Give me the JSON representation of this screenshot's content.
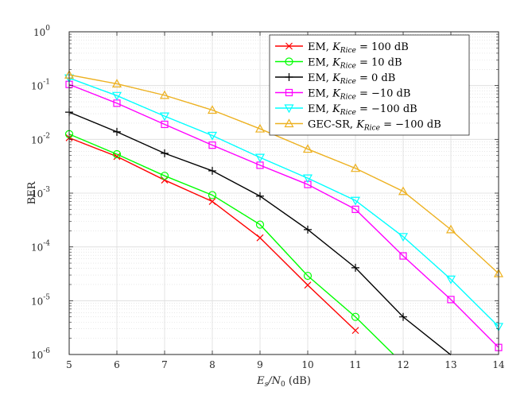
{
  "chart_data": {
    "type": "line",
    "title": "",
    "xlabel": {
      "main": "E",
      "sub1": "s",
      "slash": "/N",
      "sub2": "0",
      "tail": " (dB)"
    },
    "ylabel": "BER",
    "xlim": [
      5,
      14
    ],
    "ylim_log10": [
      -6,
      0
    ],
    "y_scale": "log",
    "grid": true,
    "legend_position": "top-right",
    "x_ticks": [
      "5",
      "6",
      "7",
      "8",
      "9",
      "10",
      "11",
      "12",
      "13",
      "14"
    ],
    "y_ticks": [
      {
        "base": "10",
        "exp": "0"
      },
      {
        "base": "10",
        "exp": "-1"
      },
      {
        "base": "10",
        "exp": "-2"
      },
      {
        "base": "10",
        "exp": "-3"
      },
      {
        "base": "10",
        "exp": "-4"
      },
      {
        "base": "10",
        "exp": "-5"
      },
      {
        "base": "10",
        "exp": "-6"
      }
    ],
    "series": [
      {
        "name": "EM, K_Rice = 100 dB",
        "label": {
          "prefix": "EM, ",
          "k": "K",
          "sub": "Rice",
          "suffix": " = 100 dB"
        },
        "color": "#ff0000",
        "marker": "x",
        "x": [
          5,
          6,
          7,
          8,
          9,
          10,
          11
        ],
        "y": [
          0.0107,
          0.0048,
          0.00175,
          0.0007,
          0.000148,
          1.95e-05,
          2.8e-06
        ]
      },
      {
        "name": "EM, K_Rice = 10 dB",
        "label": {
          "prefix": "EM, ",
          "k": "K",
          "sub": "Rice",
          "suffix": " = 10 dB"
        },
        "color": "#00ff00",
        "marker": "circle",
        "x": [
          5,
          6,
          7,
          8,
          9,
          10,
          11,
          11.8
        ],
        "y": [
          0.0125,
          0.0053,
          0.0021,
          0.00092,
          0.00026,
          2.9e-05,
          5e-06,
          1e-06
        ]
      },
      {
        "name": "EM, K_Rice = 0 dB",
        "label": {
          "prefix": "EM, ",
          "k": "K",
          "sub": "Rice",
          "suffix": " = 0 dB"
        },
        "color": "#000000",
        "marker": "plus",
        "x": [
          5,
          6,
          7,
          8,
          9,
          10,
          11,
          12,
          13
        ],
        "y": [
          0.032,
          0.0138,
          0.0055,
          0.0026,
          0.00088,
          0.00021,
          4.1e-05,
          5e-06,
          9.8e-07
        ]
      },
      {
        "name": "EM, K_Rice = −10 dB",
        "label": {
          "prefix": "EM, ",
          "k": "K",
          "sub": "Rice",
          "suffix": " = −10 dB"
        },
        "color": "#ff00ff",
        "marker": "square",
        "x": [
          5,
          6,
          7,
          8,
          9,
          10,
          11,
          12,
          13,
          14
        ],
        "y": [
          0.105,
          0.047,
          0.019,
          0.0078,
          0.0033,
          0.00145,
          0.0005,
          6.8e-05,
          1.05e-05,
          1.35e-06
        ]
      },
      {
        "name": "EM, K_Rice = −100 dB",
        "label": {
          "prefix": "EM, ",
          "k": "K",
          "sub": "Rice",
          "suffix": " = −100 dB"
        },
        "color": "#00ffff",
        "marker": "triangle-down",
        "x": [
          5,
          6,
          7,
          8,
          9,
          10,
          11,
          12,
          13,
          14
        ],
        "y": [
          0.138,
          0.065,
          0.027,
          0.0118,
          0.0046,
          0.0019,
          0.00073,
          0.000155,
          2.5e-05,
          3.3e-06
        ]
      },
      {
        "name": "GEC-SR, K_Rice = −100 dB",
        "label": {
          "prefix": "GEC-SR, ",
          "k": "K",
          "sub": "Rice",
          "suffix": " = −100 dB"
        },
        "color": "#edb120",
        "marker": "triangle-up",
        "x": [
          5,
          6,
          7,
          8,
          9,
          10,
          11,
          12,
          13,
          14
        ],
        "y": [
          0.158,
          0.108,
          0.066,
          0.035,
          0.0157,
          0.0066,
          0.0029,
          0.00108,
          0.00021,
          3.2e-05
        ]
      }
    ]
  }
}
